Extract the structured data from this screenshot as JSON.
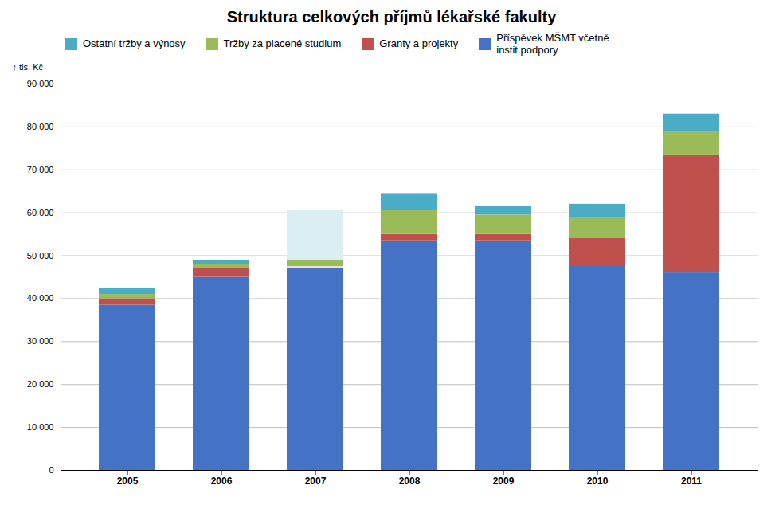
{
  "chart_data": {
    "type": "bar",
    "stacked": true,
    "title": "Struktura celkových příjmů lékařské fakulty",
    "ylabel": "tis. Kč",
    "categories": [
      "2005",
      "2006",
      "2007",
      "2008",
      "2009",
      "2010",
      "2011"
    ],
    "series": [
      {
        "name": "Příspěvek MŠMT včetně\ninstit.podpory",
        "color": "#4472C4",
        "values": [
          38500,
          45000,
          47000,
          53500,
          53500,
          47500,
          46000
        ]
      },
      {
        "name": "Granty a projekty",
        "color": "#C0504D",
        "colors": [
          "#C0504D",
          "#C0504D",
          "#F2DCDB",
          "#C0504D",
          "#C0504D",
          "#C0504D",
          "#C0504D"
        ],
        "values": [
          1500,
          2000,
          500,
          1500,
          1500,
          6500,
          27500
        ]
      },
      {
        "name": "Tržby za placené studium",
        "color": "#9BBB59",
        "values": [
          1000,
          1000,
          1500,
          5500,
          4500,
          5000,
          5500
        ]
      },
      {
        "name": "Ostatní tržby a výnosy",
        "color": "#4BACC6",
        "colors": [
          "#4BACC6",
          "#4BACC6",
          "#DAEEF3",
          "#4BACC6",
          "#4BACC6",
          "#4BACC6",
          "#4BACC6"
        ],
        "values": [
          1500,
          900,
          11500,
          4000,
          2000,
          3000,
          4000
        ]
      }
    ],
    "ylim": [
      0,
      90000
    ],
    "yticks": [
      0,
      {
        "value": 10000,
        "label": "10 000"
      },
      {
        "value": 20000,
        "label": "20 000"
      },
      {
        "value": 30000,
        "label": "30 000"
      },
      {
        "value": 40000,
        "label": "40 000"
      },
      {
        "value": 50000,
        "label": "50 000"
      },
      {
        "value": 60000,
        "label": "60 000"
      },
      {
        "value": 70000,
        "label": "70 000"
      },
      {
        "value": 80000,
        "label": "80 000"
      },
      {
        "value": 90000,
        "label": "90 000"
      }
    ],
    "grid": true,
    "legend": "upper left"
  }
}
